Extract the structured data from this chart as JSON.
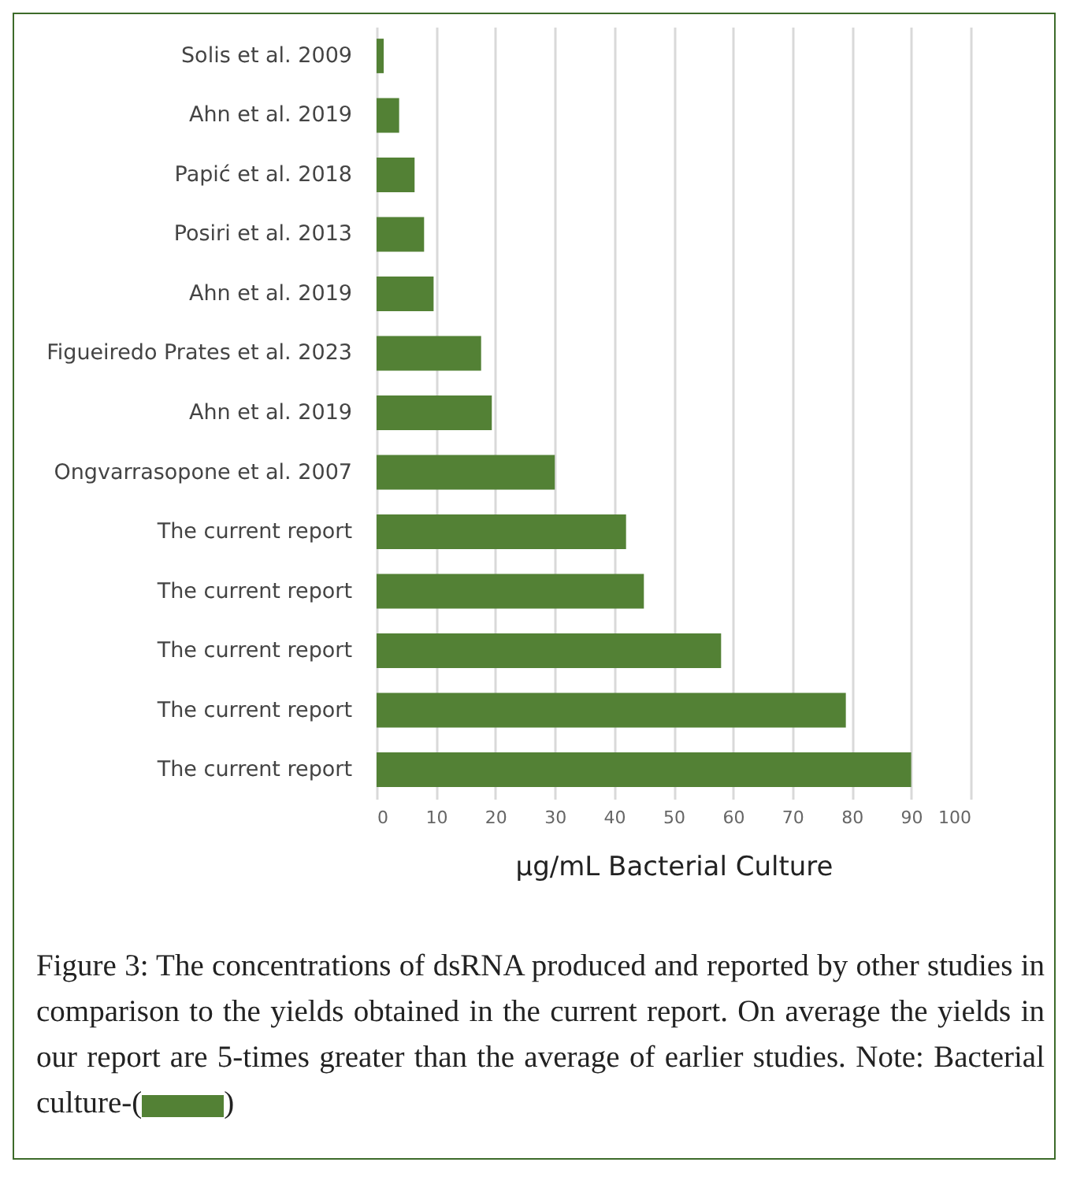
{
  "chart_data": {
    "type": "bar",
    "orientation": "horizontal",
    "xlabel": "µg/mL Bacterial Culture",
    "categories": [
      "Solis et al. 2009",
      "Ahn et al. 2019",
      "Papić et al. 2018",
      "Posiri et al. 2013",
      "Ahn et al. 2019",
      "Figueiredo Prates et al. 2023",
      "Ahn et al. 2019",
      "Ongvarrasopone et al. 2007",
      "The current report",
      "The current report",
      "The current report",
      "The current report",
      "The current report"
    ],
    "values": [
      1.2,
      3.8,
      6.4,
      8,
      9.6,
      17.6,
      19.4,
      30,
      42,
      45,
      58,
      79,
      90
    ],
    "color": "#538135",
    "xlim": [
      0,
      100
    ],
    "xticks": [
      0,
      10,
      20,
      30,
      40,
      50,
      60,
      70,
      80,
      90,
      100
    ],
    "grid": "x",
    "annotations": [
      "Figure 3: The concentrations of dsRNA produced and reported by other studies in comparison to the yields obtained in the current report. On average the yields in our report are 5-times greater than the average of earlier studies. Note: Bacterial culture-(",
      ")"
    ]
  }
}
